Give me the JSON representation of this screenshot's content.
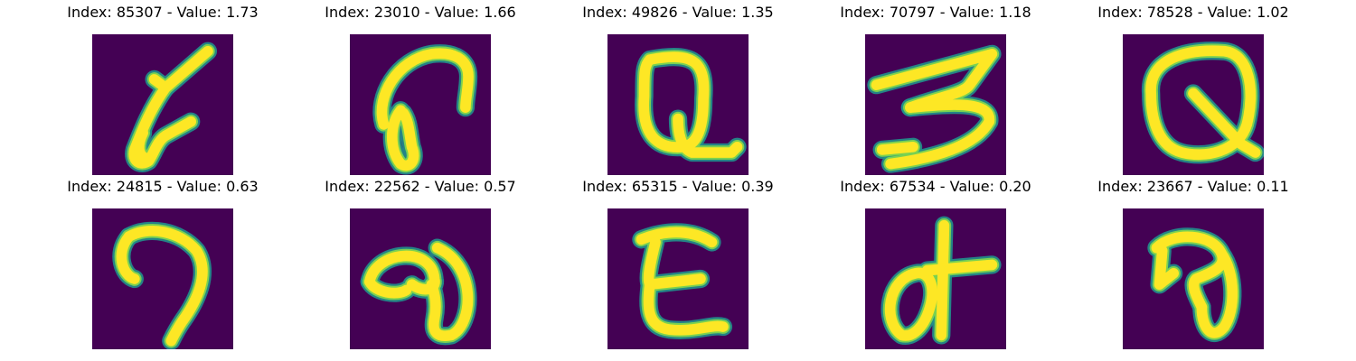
{
  "colors": {
    "background": "#440154",
    "stroke_edge": "#21918c",
    "stroke_mid": "#7ad151",
    "stroke_core": "#fde725",
    "title_text": "#000000"
  },
  "panels": [
    {
      "title": "Index: 85307 - Value: 1.73",
      "image": "handwritten-glyph-6-like"
    },
    {
      "title": "Index: 23010 - Value: 1.66",
      "image": "handwritten-glyph-c-hook"
    },
    {
      "title": "Index: 49826 - Value: 1.35",
      "image": "handwritten-glyph-Q"
    },
    {
      "title": "Index: 70797 - Value: 1.18",
      "image": "handwritten-glyph-3"
    },
    {
      "title": "Index: 78528 - Value: 1.02",
      "image": "handwritten-glyph-Q-leaf"
    },
    {
      "title": "Index: 24815 - Value: 0.63",
      "image": "handwritten-glyph-7-hook"
    },
    {
      "title": "Index: 22562 - Value: 0.57",
      "image": "handwritten-glyph-a-curl"
    },
    {
      "title": "Index: 65315 - Value: 0.39",
      "image": "handwritten-glyph-E-rounded"
    },
    {
      "title": "Index: 67534 - Value: 0.20",
      "image": "handwritten-glyph-cross-loop"
    },
    {
      "title": "Index: 23667 - Value: 0.11",
      "image": "handwritten-glyph-a-loop"
    }
  ]
}
